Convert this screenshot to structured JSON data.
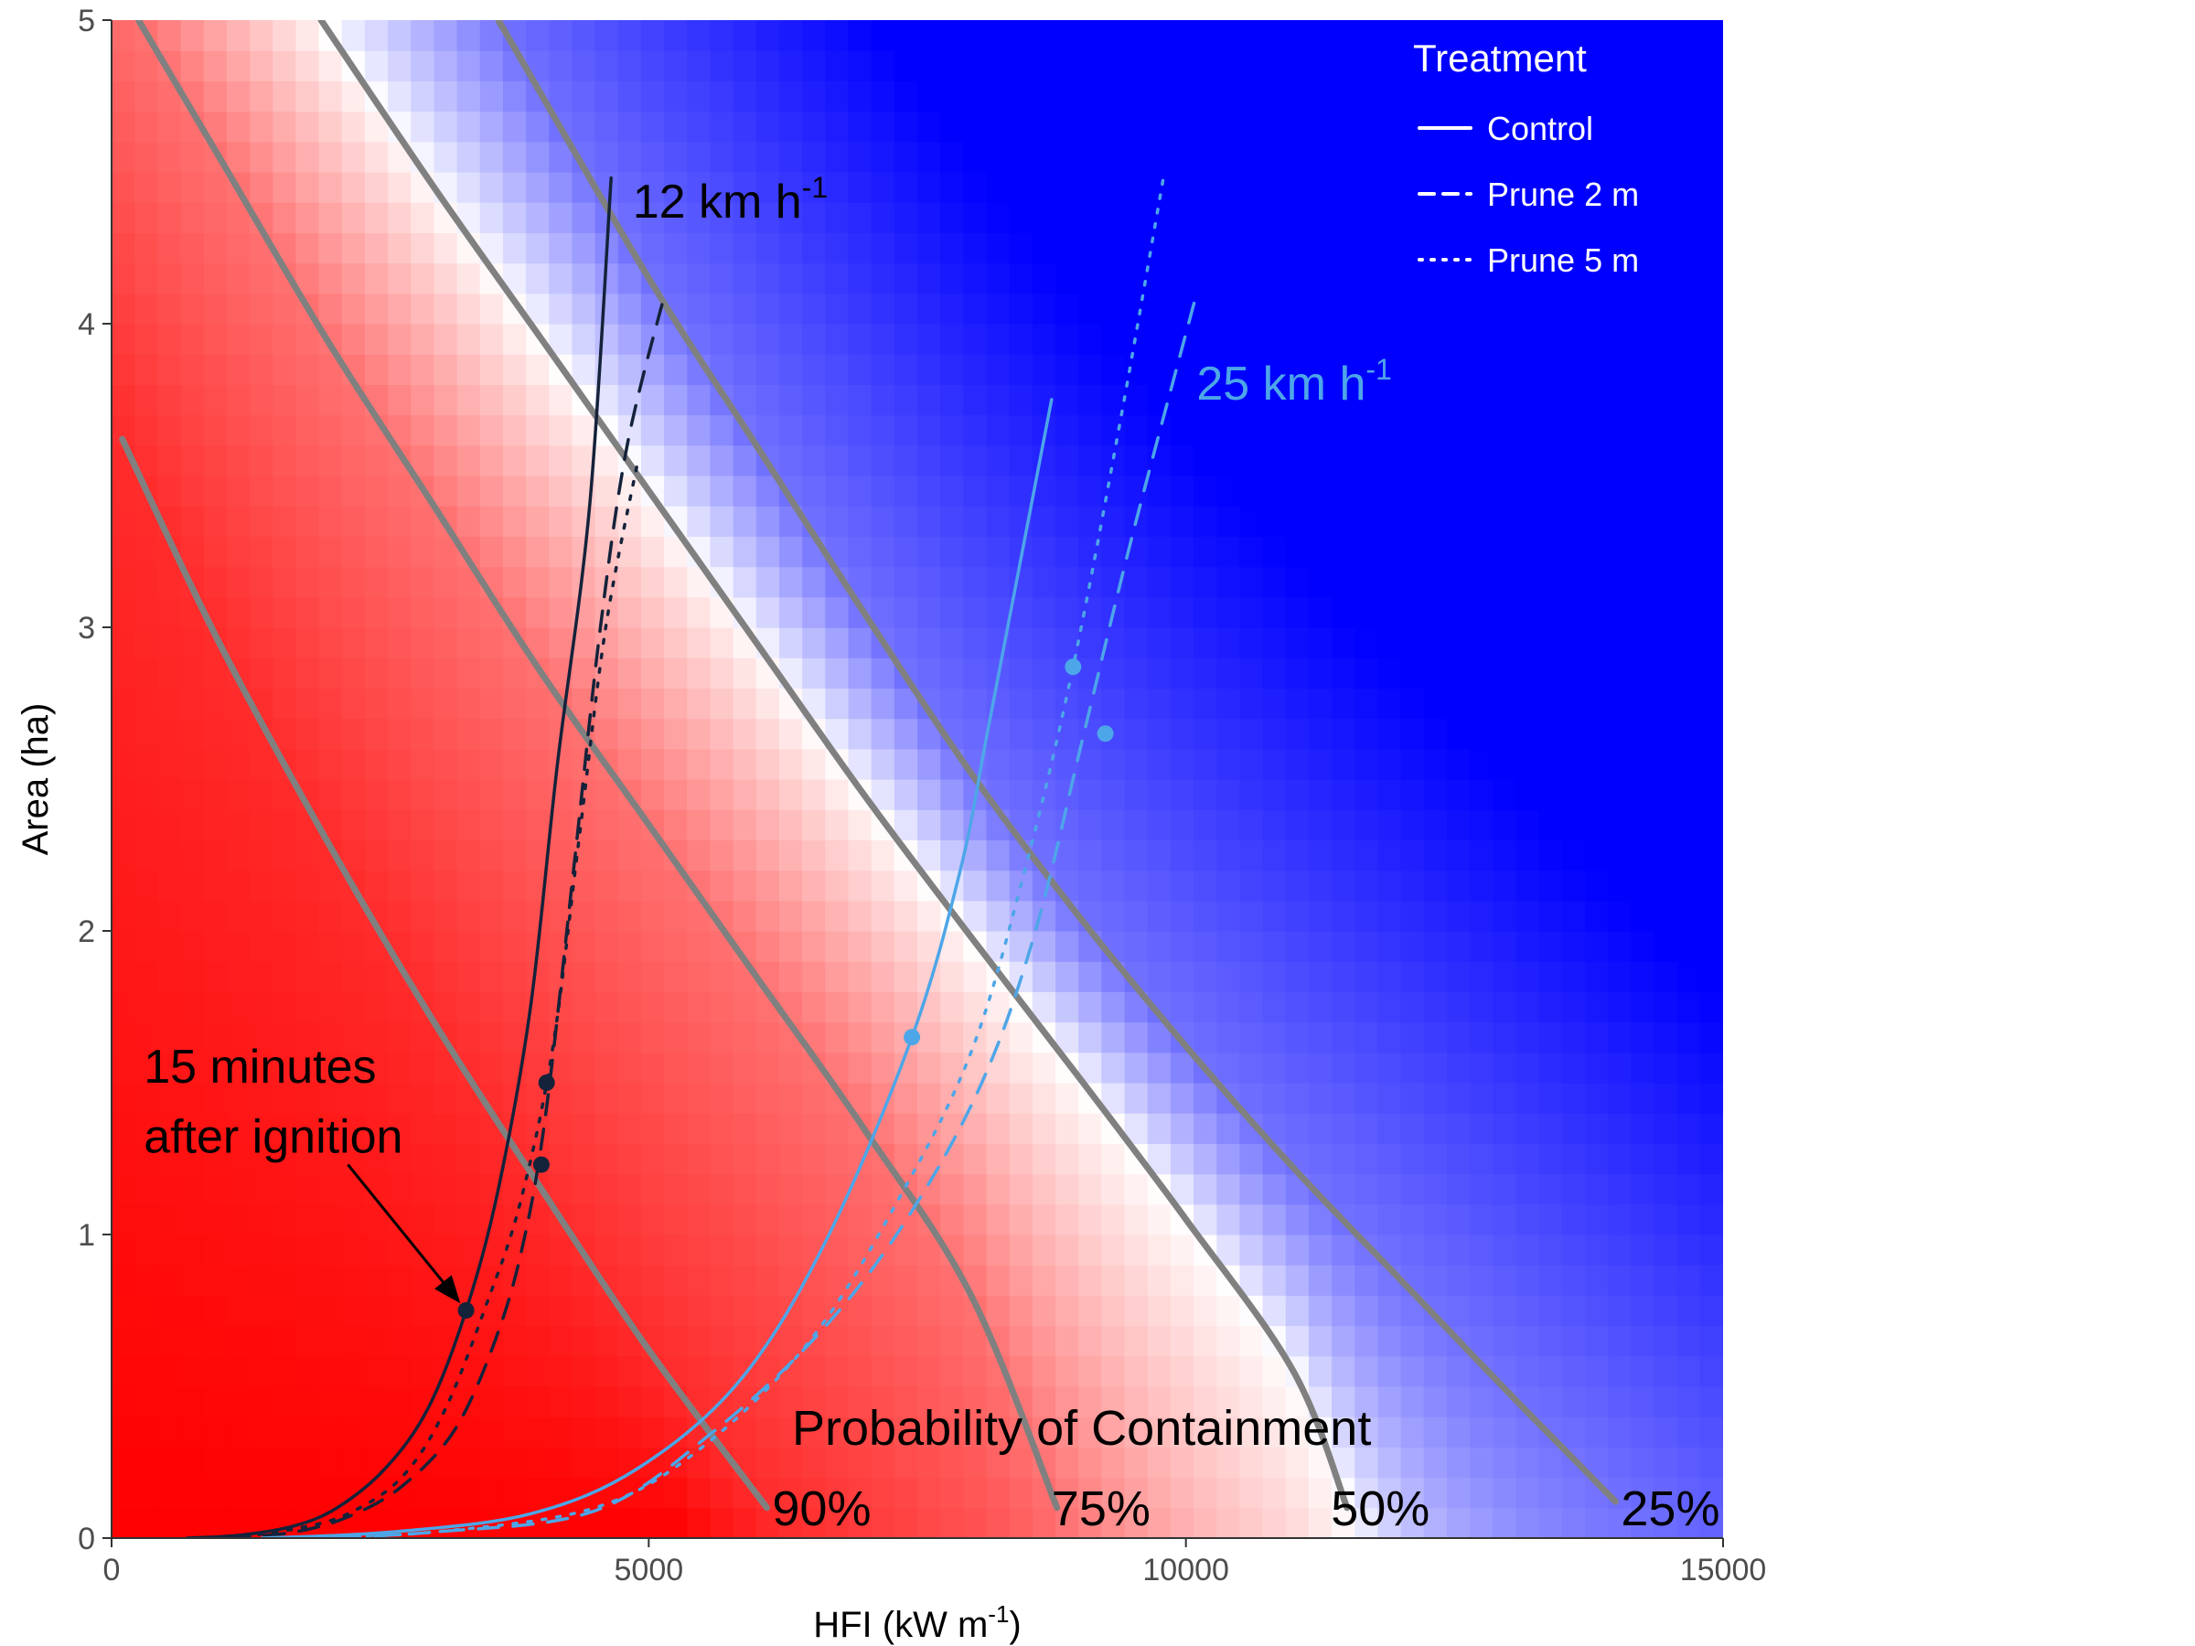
{
  "chart_data": {
    "type": "line",
    "xlabel": "HFI (kW m",
    "xlabel_sup": "-1",
    "xlabel_end": ")",
    "ylabel": "Area (ha)",
    "xlim": [
      0,
      15000
    ],
    "ylim": [
      0,
      5
    ],
    "x_ticks": [
      0,
      5000,
      10000,
      15000
    ],
    "x_tick_labels": [
      "0",
      "5000",
      "10000",
      "15000"
    ],
    "y_ticks": [
      0,
      1,
      2,
      3,
      4,
      5
    ],
    "y_tick_labels": [
      "0",
      "1",
      "2",
      "3",
      "4",
      "5"
    ],
    "grid": false,
    "background_gradient": {
      "low_color": "#ff0000",
      "mid_color": "#ffffff",
      "high_color": "#0000ff"
    },
    "legend": {
      "title": "Treatment",
      "placement": "top-right",
      "entries": [
        {
          "label": "Control",
          "dash": "solid"
        },
        {
          "label": "Prune 2 m",
          "dash": "dashed"
        },
        {
          "label": "Prune 5 m",
          "dash": "dotted"
        }
      ]
    },
    "containment": {
      "title": "Probability of Containment",
      "color": "#808080",
      "curves": [
        {
          "label": "90%",
          "points": [
            [
              100,
              3.62
            ],
            [
              1000,
              2.95
            ],
            [
              2000,
              2.3
            ],
            [
              3000,
              1.7
            ],
            [
              4000,
              1.15
            ],
            [
              5000,
              0.62
            ],
            [
              6100,
              0.1
            ]
          ]
        },
        {
          "label": "75%",
          "points": [
            [
              250,
              5.0
            ],
            [
              1000,
              4.55
            ],
            [
              2000,
              3.95
            ],
            [
              3000,
              3.4
            ],
            [
              4000,
              2.85
            ],
            [
              5000,
              2.35
            ],
            [
              6000,
              1.85
            ],
            [
              7000,
              1.35
            ],
            [
              8000,
              0.8
            ],
            [
              8800,
              0.1
            ]
          ]
        },
        {
          "label": "50%",
          "points": [
            [
              1950,
              5.0
            ],
            [
              3000,
              4.45
            ],
            [
              4000,
              3.95
            ],
            [
              5000,
              3.45
            ],
            [
              6000,
              2.95
            ],
            [
              7000,
              2.45
            ],
            [
              8000,
              1.98
            ],
            [
              9000,
              1.52
            ],
            [
              10000,
              1.05
            ],
            [
              11000,
              0.55
            ],
            [
              11500,
              0.1
            ]
          ]
        },
        {
          "label": "25%",
          "points": [
            [
              3600,
              5.0
            ],
            [
              5000,
              4.15
            ],
            [
              6000,
              3.6
            ],
            [
              7000,
              3.05
            ],
            [
              8000,
              2.52
            ],
            [
              9000,
              2.05
            ],
            [
              10000,
              1.62
            ],
            [
              11000,
              1.22
            ],
            [
              12000,
              0.85
            ],
            [
              13000,
              0.48
            ],
            [
              14000,
              0.12
            ]
          ]
        }
      ]
    },
    "series": [
      {
        "name": "Control",
        "dash": "solid",
        "color": "#14223a",
        "points": [
          [
            700,
            0
          ],
          [
            1200,
            0.01
          ],
          [
            1700,
            0.04
          ],
          [
            2100,
            0.1
          ],
          [
            2550,
            0.23
          ],
          [
            2950,
            0.43
          ],
          [
            3300,
            0.75
          ],
          [
            3600,
            1.15
          ],
          [
            3900,
            1.75
          ],
          [
            4150,
            2.55
          ],
          [
            4450,
            3.4
          ],
          [
            4650,
            4.48
          ]
        ],
        "marker": [
          3300,
          0.75
        ]
      },
      {
        "name": "Prune 2 m",
        "dash": "dashed",
        "color": "#14223a",
        "points": [
          [
            1100,
            0
          ],
          [
            1700,
            0.02
          ],
          [
            2200,
            0.07
          ],
          [
            2700,
            0.17
          ],
          [
            3200,
            0.36
          ],
          [
            3600,
            0.68
          ],
          [
            3850,
            1.0
          ],
          [
            4050,
            1.42
          ],
          [
            4300,
            2.2
          ],
          [
            4550,
            3.0
          ],
          [
            4800,
            3.6
          ],
          [
            5150,
            4.1
          ]
        ],
        "marker": [
          4050,
          1.5
        ]
      },
      {
        "name": "Prune 5 m",
        "dash": "dotted",
        "color": "#14223a",
        "points": [
          [
            1100,
            0
          ],
          [
            1700,
            0.03
          ],
          [
            2200,
            0.08
          ],
          [
            2700,
            0.2
          ],
          [
            3100,
            0.42
          ],
          [
            3500,
            0.78
          ],
          [
            3800,
            1.1
          ],
          [
            4100,
            1.6
          ],
          [
            4350,
            2.3
          ],
          [
            4600,
            3.0
          ],
          [
            4900,
            3.55
          ]
        ],
        "marker": [
          4000,
          1.23
        ]
      },
      {
        "name": "Control",
        "dash": "solid",
        "color": "#4da6e8",
        "points": [
          [
            1400,
            0
          ],
          [
            2600,
            0.02
          ],
          [
            3900,
            0.08
          ],
          [
            4900,
            0.23
          ],
          [
            5850,
            0.52
          ],
          [
            6650,
            0.98
          ],
          [
            7450,
            1.65
          ],
          [
            7900,
            2.2
          ],
          [
            8150,
            2.65
          ],
          [
            8450,
            3.2
          ],
          [
            8750,
            3.75
          ]
        ],
        "marker": [
          7450,
          1.65
        ]
      },
      {
        "name": "Prune 2 m",
        "dash": "dashed",
        "color": "#4da6e8",
        "points": [
          [
            1800,
            0
          ],
          [
            3000,
            0.02
          ],
          [
            4500,
            0.09
          ],
          [
            5600,
            0.35
          ],
          [
            6600,
            0.68
          ],
          [
            7400,
            1.05
          ],
          [
            8100,
            1.5
          ],
          [
            8600,
            2.0
          ],
          [
            9050,
            2.65
          ],
          [
            9500,
            3.3
          ],
          [
            10100,
            4.1
          ]
        ],
        "marker": [
          9250,
          2.65
        ]
      },
      {
        "name": "Prune 5 m",
        "dash": "dotted",
        "color": "#4da6e8",
        "points": [
          [
            1700,
            0
          ],
          [
            3000,
            0.02
          ],
          [
            4500,
            0.1
          ],
          [
            5500,
            0.3
          ],
          [
            6500,
            0.65
          ],
          [
            7300,
            1.1
          ],
          [
            8000,
            1.6
          ],
          [
            8500,
            2.2
          ],
          [
            8950,
            2.87
          ],
          [
            9400,
            3.7
          ],
          [
            9800,
            4.5
          ]
        ],
        "marker": [
          8950,
          2.87
        ]
      }
    ],
    "annotations": [
      {
        "text": "12 km h",
        "sup": "-1",
        "x": 4850,
        "y": 4.35,
        "color": "#000000"
      },
      {
        "text": "25 km h",
        "sup": "-1",
        "x": 10100,
        "y": 3.75,
        "color": "#4da6e8"
      },
      {
        "text": "15 minutes",
        "x": 300,
        "y": 1.5,
        "color": "#000000"
      },
      {
        "text": "after ignition",
        "x": 300,
        "y": 1.27,
        "color": "#000000"
      }
    ],
    "arrow": {
      "from": [
        2200,
        1.23
      ],
      "to": [
        3300,
        0.75
      ]
    }
  }
}
